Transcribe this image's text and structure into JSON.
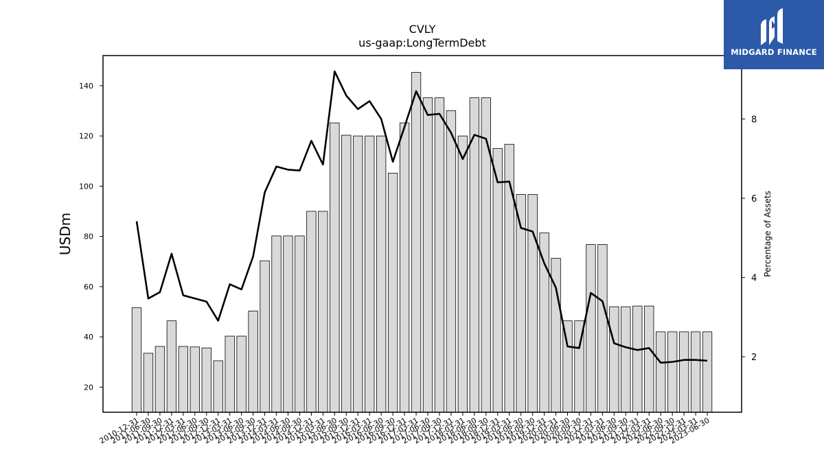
{
  "chart_data": {
    "type": "bar",
    "title": "CVLY",
    "subtitle": "us-gaap:LongTermDebt",
    "ylabel": "USDm",
    "y2label": "Percentage of Assets",
    "ylim": [
      10,
      152
    ],
    "y2lim": [
      0.6,
      9.6
    ],
    "yticks": [
      20,
      40,
      60,
      80,
      100,
      120,
      140
    ],
    "y2ticks": [
      2,
      4,
      6,
      8
    ],
    "categories": [
      "2010-12-31",
      "2011-06-30",
      "2011-09-30",
      "2011-12-31",
      "2012-03-31",
      "2012-06-30",
      "2012-09-30",
      "2012-12-31",
      "2013-03-31",
      "2013-06-30",
      "2013-09-30",
      "2013-12-31",
      "2014-03-31",
      "2014-06-30",
      "2014-09-30",
      "2014-12-31",
      "2015-03-31",
      "2015-06-30",
      "2015-09-30",
      "2015-12-31",
      "2016-03-31",
      "2016-06-30",
      "2016-09-30",
      "2016-12-31",
      "2017-03-31",
      "2017-06-30",
      "2017-09-30",
      "2017-12-31",
      "2018-03-31",
      "2018-06-30",
      "2018-09-30",
      "2018-12-31",
      "2019-03-31",
      "2019-06-30",
      "2019-09-30",
      "2019-12-31",
      "2020-03-31",
      "2020-06-30",
      "2020-09-30",
      "2020-12-31",
      "2021-03-31",
      "2021-06-30",
      "2021-09-30",
      "2021-12-31",
      "2022-03-31",
      "2022-06-30",
      "2022-09-30",
      "2022-12-31",
      "2023-03-31",
      "2023-06-30"
    ],
    "series": [
      {
        "type": "bar",
        "axis": "left",
        "values": [
          51.6,
          33.5,
          36.2,
          46.4,
          36.2,
          36.0,
          35.6,
          30.5,
          40.3,
          40.3,
          50.3,
          70.3,
          80.2,
          80.2,
          80.2,
          90.0,
          90.0,
          125.2,
          120.3,
          120.0,
          120.0,
          120.0,
          105.2,
          125.2,
          145.3,
          135.2,
          135.2,
          130.1,
          120.0,
          135.2,
          135.2,
          115.0,
          116.7,
          96.7,
          96.7,
          81.4,
          71.3,
          46.4,
          46.4,
          76.8,
          76.8,
          52.0,
          52.0,
          52.3,
          52.3,
          42.0,
          42.0,
          42.0,
          42.0,
          42.0
        ]
      },
      {
        "type": "line",
        "axis": "right",
        "values": [
          5.42,
          3.47,
          3.63,
          4.6,
          3.55,
          3.47,
          3.39,
          2.91,
          3.83,
          3.7,
          4.53,
          6.15,
          6.8,
          6.72,
          6.7,
          7.45,
          6.85,
          9.2,
          8.59,
          8.25,
          8.45,
          8.0,
          6.92,
          7.8,
          8.7,
          8.1,
          8.13,
          7.65,
          6.99,
          7.6,
          7.5,
          6.4,
          6.42,
          5.25,
          5.16,
          4.36,
          3.74,
          2.26,
          2.22,
          3.61,
          3.4,
          2.34,
          2.24,
          2.17,
          2.22,
          1.85,
          1.87,
          1.92,
          1.92,
          1.9
        ]
      }
    ],
    "bar_color": "#d9d9d9",
    "line_color": "#000000"
  },
  "logo": {
    "text": "MIDGARD FINANCE",
    "color": "#2c5aa8"
  }
}
